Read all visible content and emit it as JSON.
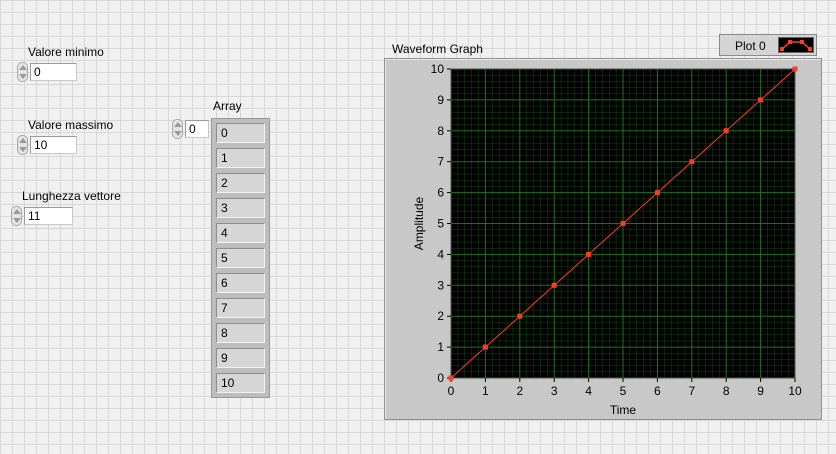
{
  "controls": {
    "min": {
      "label": "Valore minimo",
      "value": "0"
    },
    "max": {
      "label": "Valore massimo",
      "value": "10"
    },
    "length": {
      "label": "Lunghezza vettore",
      "value": "11"
    }
  },
  "array": {
    "label": "Array",
    "index": "0",
    "items": [
      "0",
      "1",
      "2",
      "3",
      "4",
      "5",
      "6",
      "7",
      "8",
      "9",
      "10"
    ]
  },
  "graph": {
    "title": "Waveform Graph",
    "legend_label": "Plot 0",
    "plot_color": "#ff3c1e",
    "grid_color": "#1f7a1f",
    "background_color": "#000000"
  },
  "chart_data": {
    "type": "line",
    "title": "Waveform Graph",
    "xlabel": "Time",
    "ylabel": "Amplitude",
    "xlim": [
      0,
      10
    ],
    "ylim": [
      0,
      10
    ],
    "grid": true,
    "x_ticks": [
      "0",
      "1",
      "2",
      "3",
      "4",
      "5",
      "6",
      "7",
      "8",
      "9",
      "10"
    ],
    "y_ticks": [
      "0",
      "1",
      "2",
      "3",
      "4",
      "5",
      "6",
      "7",
      "8",
      "9",
      "10"
    ],
    "series": [
      {
        "name": "Plot 0",
        "x": [
          0,
          1,
          2,
          3,
          4,
          5,
          6,
          7,
          8,
          9,
          10
        ],
        "values": [
          0,
          1,
          2,
          3,
          4,
          5,
          6,
          7,
          8,
          9,
          10
        ]
      }
    ]
  }
}
